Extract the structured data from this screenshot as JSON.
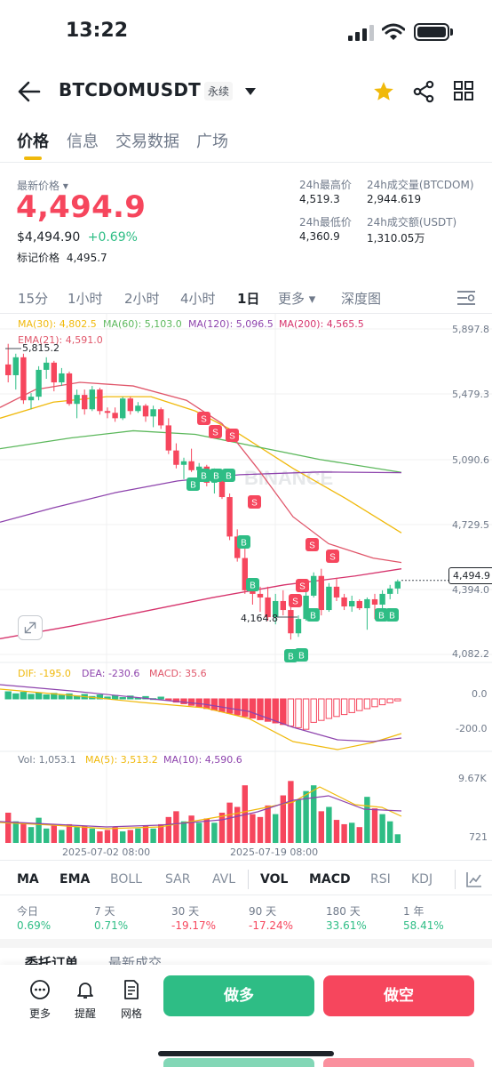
{
  "status_bar": {
    "time": "13:22"
  },
  "header": {
    "symbol": "BTCDOMUSDT",
    "badge": "永续"
  },
  "tabs": [
    "价格",
    "信息",
    "交易数据",
    "广场"
  ],
  "price": {
    "last_label": "最新价格",
    "last": "4,494.9",
    "usd": "$4,494.90",
    "change": "+0.69%",
    "mark_label": "标记价格",
    "mark": "4,495.7"
  },
  "stats": {
    "high_label": "24h最高价",
    "high": "4,519.3",
    "vol_label": "24h成交量(BTCDOM)",
    "vol": "2,944.619",
    "low_label": "24h最低价",
    "low": "4,360.9",
    "turnover_label": "24h成交额(USDT)",
    "turnover": "1,310.05万"
  },
  "intervals": [
    "15分",
    "1小时",
    "2小时",
    "4小时",
    "1日",
    "更多",
    "深度图"
  ],
  "ma_legend": {
    "ma30": "MA(30): 4,802.5",
    "ma60": "MA(60): 5,103.0",
    "ma120": "MA(120): 5,096.5",
    "ma200": "MA(200): 4,565.5",
    "ema21": "EMA(21): 4,591.0"
  },
  "axis": {
    "p1": "5,897.8",
    "p2": "5,479.3",
    "p3": "5,090.6",
    "p4": "4,729.5",
    "p5": "4,394.0",
    "p6": "4,082.2",
    "current": "4,494.9",
    "high_mark": "5,815.2",
    "low_mark": "4,164.8",
    "macd0": "0.0",
    "macd1": "-200.0",
    "vol_top": "9.67K",
    "vol_bottom": "721",
    "date1": "2025-07-02 08:00",
    "date2": "2025-07-19 08:00"
  },
  "watermark": "BINANCE",
  "macd_legend": {
    "dif": "DIF: -195.0",
    "dea": "DEA: -230.6",
    "macd": "MACD: 35.6"
  },
  "vol_legend": {
    "vol": "Vol: 1,053.1",
    "ma5": "MA(5): 3,513.2",
    "ma10": "MA(10): 4,590.6"
  },
  "indicators": [
    "MA",
    "EMA",
    "BOLL",
    "SAR",
    "AVL",
    "VOL",
    "MACD",
    "RSI",
    "KDJ"
  ],
  "performance": [
    {
      "label": "今日",
      "value": "0.69%"
    },
    {
      "label": "7 天",
      "value": "0.71%"
    },
    {
      "label": "30 天",
      "value": "-19.17%"
    },
    {
      "label": "90 天",
      "value": "-17.24%"
    },
    {
      "label": "180 天",
      "value": "33.61%"
    },
    {
      "label": "1 年",
      "value": "58.41%"
    }
  ],
  "order_tabs": [
    "委托订单",
    "最新成交"
  ],
  "toolbar": {
    "more": "更多",
    "alert": "提醒",
    "grid": "网格",
    "long": "做多",
    "short": "做空"
  },
  "colors": {
    "up": "#2ebd85",
    "down": "#f6465d",
    "accent": "#f0b90b",
    "ma30": "#f0b90b",
    "ma60": "#5cb85c",
    "ma120": "#8e44ad",
    "ma200": "#d6336c"
  },
  "chart_data": {
    "type": "candlestick",
    "ylim": [
      4082.2,
      5897.8
    ],
    "series": [
      {
        "o": 5700,
        "h": 5815,
        "l": 5600,
        "c": 5640
      },
      {
        "o": 5640,
        "h": 5760,
        "l": 5560,
        "c": 5740
      },
      {
        "o": 5740,
        "h": 5760,
        "l": 5480,
        "c": 5500
      },
      {
        "o": 5500,
        "h": 5540,
        "l": 5450,
        "c": 5520
      },
      {
        "o": 5520,
        "h": 5690,
        "l": 5500,
        "c": 5670
      },
      {
        "o": 5670,
        "h": 5740,
        "l": 5620,
        "c": 5710
      },
      {
        "o": 5710,
        "h": 5720,
        "l": 5550,
        "c": 5600
      },
      {
        "o": 5600,
        "h": 5680,
        "l": 5580,
        "c": 5650
      },
      {
        "o": 5650,
        "h": 5660,
        "l": 5470,
        "c": 5480
      },
      {
        "o": 5480,
        "h": 5560,
        "l": 5400,
        "c": 5530
      },
      {
        "o": 5530,
        "h": 5560,
        "l": 5420,
        "c": 5450
      },
      {
        "o": 5450,
        "h": 5580,
        "l": 5440,
        "c": 5560
      },
      {
        "o": 5560,
        "h": 5570,
        "l": 5420,
        "c": 5440
      },
      {
        "o": 5440,
        "h": 5460,
        "l": 5400,
        "c": 5430
      },
      {
        "o": 5430,
        "h": 5460,
        "l": 5380,
        "c": 5400
      },
      {
        "o": 5400,
        "h": 5520,
        "l": 5390,
        "c": 5510
      },
      {
        "o": 5510,
        "h": 5520,
        "l": 5420,
        "c": 5440
      },
      {
        "o": 5440,
        "h": 5490,
        "l": 5430,
        "c": 5470
      },
      {
        "o": 5470,
        "h": 5480,
        "l": 5380,
        "c": 5410
      },
      {
        "o": 5410,
        "h": 5470,
        "l": 5350,
        "c": 5450
      },
      {
        "o": 5450,
        "h": 5460,
        "l": 5340,
        "c": 5360
      },
      {
        "o": 5360,
        "h": 5400,
        "l": 5200,
        "c": 5220
      },
      {
        "o": 5220,
        "h": 5260,
        "l": 5120,
        "c": 5140
      },
      {
        "o": 5140,
        "h": 5180,
        "l": 5060,
        "c": 5160
      },
      {
        "o": 5160,
        "h": 5230,
        "l": 5100,
        "c": 5110
      },
      {
        "o": 5110,
        "h": 5150,
        "l": 5000,
        "c": 5130
      },
      {
        "o": 5130,
        "h": 5140,
        "l": 5020,
        "c": 5040
      },
      {
        "o": 5040,
        "h": 5120,
        "l": 4980,
        "c": 5090
      },
      {
        "o": 5090,
        "h": 5100,
        "l": 4950,
        "c": 4960
      },
      {
        "o": 4960,
        "h": 4980,
        "l": 4720,
        "c": 4740
      },
      {
        "o": 4740,
        "h": 4780,
        "l": 4600,
        "c": 4620
      },
      {
        "o": 4620,
        "h": 4700,
        "l": 4420,
        "c": 4440
      },
      {
        "o": 4440,
        "h": 4490,
        "l": 4360,
        "c": 4420
      },
      {
        "o": 4420,
        "h": 4460,
        "l": 4320,
        "c": 4400
      },
      {
        "o": 4400,
        "h": 4460,
        "l": 4270,
        "c": 4290
      },
      {
        "o": 4290,
        "h": 4420,
        "l": 4250,
        "c": 4380
      },
      {
        "o": 4380,
        "h": 4440,
        "l": 4300,
        "c": 4330
      },
      {
        "o": 4330,
        "h": 4400,
        "l": 4165,
        "c": 4200
      },
      {
        "o": 4200,
        "h": 4300,
        "l": 4180,
        "c": 4280
      },
      {
        "o": 4280,
        "h": 4430,
        "l": 4270,
        "c": 4410
      },
      {
        "o": 4410,
        "h": 4540,
        "l": 4400,
        "c": 4520
      },
      {
        "o": 4520,
        "h": 4560,
        "l": 4300,
        "c": 4330
      },
      {
        "o": 4330,
        "h": 4480,
        "l": 4320,
        "c": 4460
      },
      {
        "o": 4460,
        "h": 4510,
        "l": 4380,
        "c": 4400
      },
      {
        "o": 4400,
        "h": 4420,
        "l": 4330,
        "c": 4350
      },
      {
        "o": 4350,
        "h": 4410,
        "l": 4320,
        "c": 4380
      },
      {
        "o": 4380,
        "h": 4390,
        "l": 4330,
        "c": 4340
      },
      {
        "o": 4340,
        "h": 4400,
        "l": 4220,
        "c": 4390
      },
      {
        "o": 4390,
        "h": 4420,
        "l": 4280,
        "c": 4360
      },
      {
        "o": 4360,
        "h": 4440,
        "l": 4340,
        "c": 4420
      },
      {
        "o": 4420,
        "h": 4470,
        "l": 4390,
        "c": 4450
      },
      {
        "o": 4450,
        "h": 4500,
        "l": 4420,
        "c": 4490
      }
    ]
  }
}
